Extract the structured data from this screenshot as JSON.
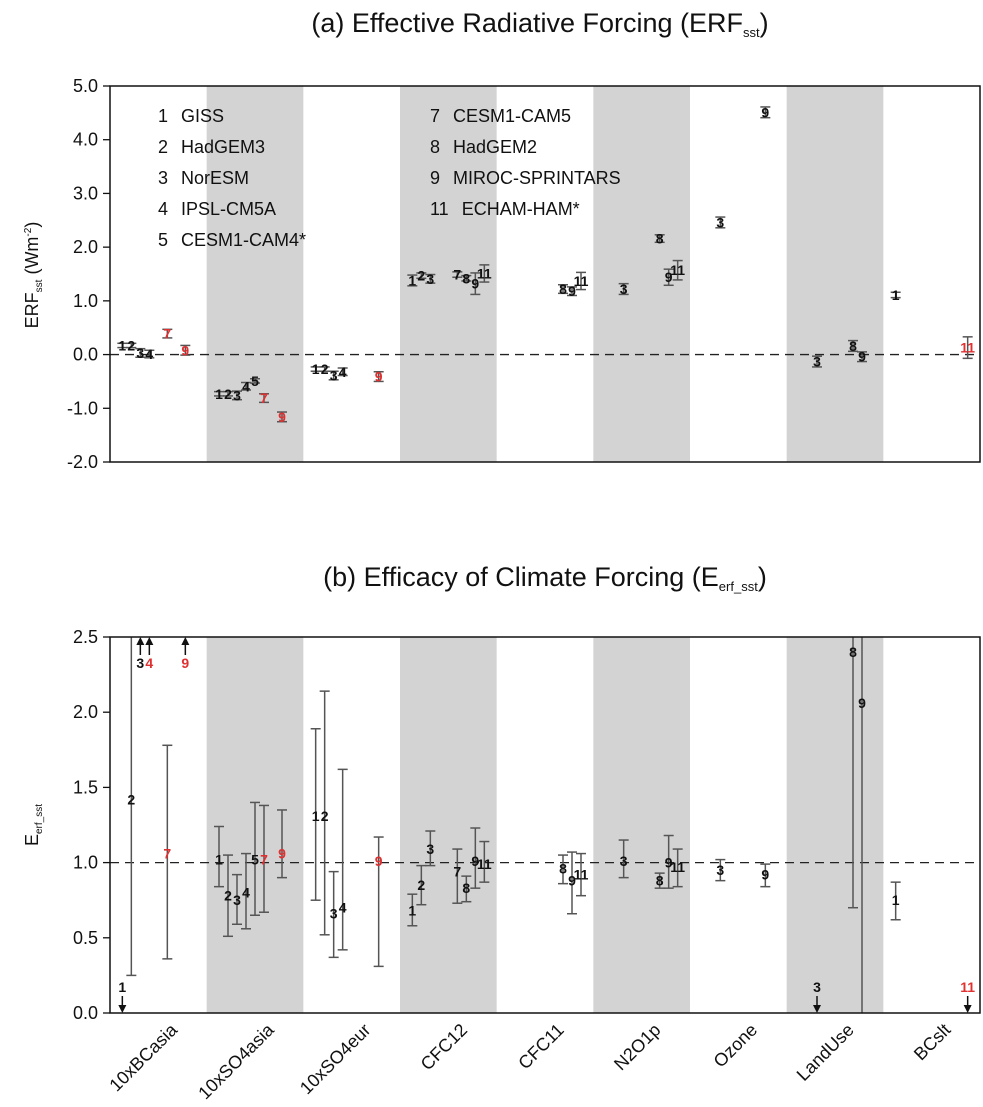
{
  "categories": [
    "10xBCasia",
    "10xSO4asia",
    "10xSO4eur",
    "CFC12",
    "CFC11",
    "N2O1p",
    "Ozone",
    "LandUse",
    "BCslt"
  ],
  "colors": {
    "highlight": "#e03030",
    "normal": "#111111",
    "band": "#d3d3d3",
    "errorbar": "#555555"
  },
  "chart_data": [
    {
      "type": "scatter",
      "title_main": "(a) Effective Radiative Forcing (ERF",
      "title_sub": "sst",
      "title_end": ")",
      "ylabel_main": "ERF",
      "ylabel_sub": "sst",
      "ylabel_unit": " (Wm",
      "ylabel_sup": "-2",
      "ylabel_end": ")",
      "ylim": [
        -2.0,
        5.0
      ],
      "yticks": [
        "-2.0",
        "-1.0",
        "0.0",
        "1.0",
        "2.0",
        "3.0",
        "4.0",
        "5.0"
      ],
      "reference_line": 0.0,
      "legend": [
        [
          "1",
          "GISS"
        ],
        [
          "2",
          "HadGEM3"
        ],
        [
          "3",
          "NorESM"
        ],
        [
          "4",
          "IPSL-CM5A"
        ],
        [
          "5",
          "CESM1-CAM4*"
        ],
        [
          "7",
          "CESM1-CAM5"
        ],
        [
          "8",
          "HadGEM2"
        ],
        [
          "9",
          "MIROC-SPRINTARS"
        ],
        [
          "11",
          "ECHAM-HAM*"
        ]
      ],
      "points": [
        {
          "cat": "10xBCasia",
          "m": "1",
          "y": 0.17,
          "err": 0.04
        },
        {
          "cat": "10xBCasia",
          "m": "2",
          "y": 0.17,
          "err": 0.04
        },
        {
          "cat": "10xBCasia",
          "m": "3",
          "y": 0.03,
          "err": 0.08
        },
        {
          "cat": "10xBCasia",
          "m": "4",
          "y": 0.01,
          "err": 0.07
        },
        {
          "cat": "10xBCasia",
          "m": "7",
          "y": 0.39,
          "err": 0.08,
          "hl": true
        },
        {
          "cat": "10xBCasia",
          "m": "9",
          "y": 0.08,
          "err": 0.09,
          "hl": true
        },
        {
          "cat": "10xSO4asia",
          "m": "1",
          "y": -0.73,
          "err": 0.04
        },
        {
          "cat": "10xSO4asia",
          "m": "2",
          "y": -0.73,
          "err": 0.04
        },
        {
          "cat": "10xSO4asia",
          "m": "3",
          "y": -0.76,
          "err": 0.08
        },
        {
          "cat": "10xSO4asia",
          "m": "4",
          "y": -0.59,
          "err": 0.07
        },
        {
          "cat": "10xSO4asia",
          "m": "5",
          "y": -0.49,
          "err": 0.04
        },
        {
          "cat": "10xSO4asia",
          "m": "7",
          "y": -0.81,
          "err": 0.08,
          "hl": true
        },
        {
          "cat": "10xSO4asia",
          "m": "9",
          "y": -1.16,
          "err": 0.09,
          "hl": true
        },
        {
          "cat": "10xSO4eur",
          "m": "1",
          "y": -0.27,
          "err": 0.04
        },
        {
          "cat": "10xSO4eur",
          "m": "2",
          "y": -0.27,
          "err": 0.04
        },
        {
          "cat": "10xSO4eur",
          "m": "3",
          "y": -0.39,
          "err": 0.08
        },
        {
          "cat": "10xSO4eur",
          "m": "4",
          "y": -0.32,
          "err": 0.07
        },
        {
          "cat": "10xSO4eur",
          "m": "9",
          "y": -0.41,
          "err": 0.09,
          "hl": true
        },
        {
          "cat": "CFC12",
          "m": "1",
          "y": 1.38,
          "err": 0.1
        },
        {
          "cat": "CFC12",
          "m": "2",
          "y": 1.47,
          "err": 0.05
        },
        {
          "cat": "CFC12",
          "m": "3",
          "y": 1.41,
          "err": 0.08
        },
        {
          "cat": "CFC12",
          "m": "7",
          "y": 1.49,
          "err": 0.05
        },
        {
          "cat": "CFC12",
          "m": "8",
          "y": 1.42,
          "err": 0.05
        },
        {
          "cat": "CFC12",
          "m": "9",
          "y": 1.32,
          "err": 0.2
        },
        {
          "cat": "CFC12",
          "m": "11",
          "y": 1.51,
          "err": 0.16
        },
        {
          "cat": "CFC11",
          "m": "8",
          "y": 1.22,
          "err": 0.08
        },
        {
          "cat": "CFC11",
          "m": "9",
          "y": 1.18,
          "err": 0.08
        },
        {
          "cat": "CFC11",
          "m": "11",
          "y": 1.37,
          "err": 0.16
        },
        {
          "cat": "N2O1p",
          "m": "3",
          "y": 1.22,
          "err": 0.1
        },
        {
          "cat": "N2O1p",
          "m": "8",
          "y": 2.16,
          "err": 0.07
        },
        {
          "cat": "N2O1p",
          "m": "9",
          "y": 1.44,
          "err": 0.15
        },
        {
          "cat": "N2O1p",
          "m": "11",
          "y": 1.57,
          "err": 0.18
        },
        {
          "cat": "Ozone",
          "m": "3",
          "y": 2.46,
          "err": 0.1
        },
        {
          "cat": "Ozone",
          "m": "9",
          "y": 4.51,
          "err": 0.1
        },
        {
          "cat": "LandUse",
          "m": "3",
          "y": -0.13,
          "err": 0.1
        },
        {
          "cat": "LandUse",
          "m": "8",
          "y": 0.16,
          "err": 0.1
        },
        {
          "cat": "LandUse",
          "m": "9",
          "y": -0.04,
          "err": 0.09
        },
        {
          "cat": "BCslt",
          "m": "1",
          "y": 1.11,
          "err": 0.05
        },
        {
          "cat": "BCslt",
          "m": "11",
          "y": 0.13,
          "err": 0.2,
          "hl": true
        }
      ]
    },
    {
      "type": "scatter",
      "title_main": "(b) Efficacy of Climate Forcing (E",
      "title_sub": "erf_sst",
      "title_end": ")",
      "ylabel_main": "E",
      "ylabel_sub": "erf_sst",
      "ylim": [
        0.0,
        2.5
      ],
      "yticks": [
        "0.0",
        "0.5",
        "1.0",
        "1.5",
        "2.0",
        "2.5"
      ],
      "reference_line": 1.0,
      "points": [
        {
          "cat": "10xBCasia",
          "m": "1",
          "off": "below"
        },
        {
          "cat": "10xBCasia",
          "m": "2",
          "y": 1.42,
          "lo": 0.25,
          "hi": 2.5
        },
        {
          "cat": "10xBCasia",
          "m": "3",
          "off": "above"
        },
        {
          "cat": "10xBCasia",
          "m": "4",
          "off": "above",
          "hl": true
        },
        {
          "cat": "10xBCasia",
          "m": "7",
          "y": 1.06,
          "lo": 0.36,
          "hi": 1.78,
          "hl": true
        },
        {
          "cat": "10xBCasia",
          "m": "9",
          "off": "above",
          "hl": true
        },
        {
          "cat": "10xSO4asia",
          "m": "1",
          "y": 1.02,
          "lo": 0.84,
          "hi": 1.24
        },
        {
          "cat": "10xSO4asia",
          "m": "2",
          "y": 0.78,
          "lo": 0.51,
          "hi": 1.05
        },
        {
          "cat": "10xSO4asia",
          "m": "3",
          "y": 0.75,
          "lo": 0.59,
          "hi": 0.92
        },
        {
          "cat": "10xSO4asia",
          "m": "4",
          "y": 0.8,
          "lo": 0.56,
          "hi": 1.06
        },
        {
          "cat": "10xSO4asia",
          "m": "5",
          "y": 1.02,
          "lo": 0.65,
          "hi": 1.4
        },
        {
          "cat": "10xSO4asia",
          "m": "7",
          "y": 1.02,
          "lo": 0.67,
          "hi": 1.38,
          "hl": true
        },
        {
          "cat": "10xSO4asia",
          "m": "9",
          "y": 1.06,
          "lo": 0.9,
          "hi": 1.35,
          "hl": true
        },
        {
          "cat": "10xSO4eur",
          "m": "1",
          "y": 1.31,
          "lo": 0.75,
          "hi": 1.89
        },
        {
          "cat": "10xSO4eur",
          "m": "2",
          "y": 1.31,
          "lo": 0.52,
          "hi": 2.14
        },
        {
          "cat": "10xSO4eur",
          "m": "3",
          "y": 0.66,
          "lo": 0.37,
          "hi": 0.94
        },
        {
          "cat": "10xSO4eur",
          "m": "4",
          "y": 0.7,
          "lo": 0.42,
          "hi": 1.62
        },
        {
          "cat": "10xSO4eur",
          "m": "9",
          "y": 1.01,
          "lo": 0.31,
          "hi": 1.17,
          "hl": true
        },
        {
          "cat": "CFC12",
          "m": "1",
          "y": 0.68,
          "lo": 0.58,
          "hi": 0.79
        },
        {
          "cat": "CFC12",
          "m": "2",
          "y": 0.85,
          "lo": 0.72,
          "hi": 0.98
        },
        {
          "cat": "CFC12",
          "m": "3",
          "y": 1.09,
          "lo": 0.98,
          "hi": 1.21
        },
        {
          "cat": "CFC12",
          "m": "7",
          "y": 0.94,
          "lo": 0.73,
          "hi": 1.09
        },
        {
          "cat": "CFC12",
          "m": "8",
          "y": 0.83,
          "lo": 0.74,
          "hi": 0.91
        },
        {
          "cat": "CFC12",
          "m": "9",
          "y": 1.01,
          "lo": 0.83,
          "hi": 1.23
        },
        {
          "cat": "CFC12",
          "m": "11",
          "y": 0.99,
          "lo": 0.87,
          "hi": 1.14
        },
        {
          "cat": "CFC11",
          "m": "8",
          "y": 0.96,
          "lo": 0.86,
          "hi": 1.05
        },
        {
          "cat": "CFC11",
          "m": "9",
          "y": 0.88,
          "lo": 0.66,
          "hi": 1.07
        },
        {
          "cat": "CFC11",
          "m": "11",
          "y": 0.92,
          "lo": 0.78,
          "hi": 1.06
        },
        {
          "cat": "N2O1p",
          "m": "3",
          "y": 1.01,
          "lo": 0.9,
          "hi": 1.15
        },
        {
          "cat": "N2O1p",
          "m": "8",
          "y": 0.88,
          "lo": 0.83,
          "hi": 0.93
        },
        {
          "cat": "N2O1p",
          "m": "9",
          "y": 1.0,
          "lo": 0.83,
          "hi": 1.18
        },
        {
          "cat": "N2O1p",
          "m": "11",
          "y": 0.97,
          "lo": 0.84,
          "hi": 1.09
        },
        {
          "cat": "Ozone",
          "m": "3",
          "y": 0.95,
          "lo": 0.88,
          "hi": 1.02
        },
        {
          "cat": "Ozone",
          "m": "9",
          "y": 0.92,
          "lo": 0.84,
          "hi": 0.99
        },
        {
          "cat": "LandUse",
          "m": "3",
          "off": "below"
        },
        {
          "cat": "LandUse",
          "m": "8",
          "y": 2.4,
          "lo": 0.7,
          "hi": 2.5
        },
        {
          "cat": "LandUse",
          "m": "9",
          "y": 2.06,
          "lo": 0.0,
          "hi": 2.5
        },
        {
          "cat": "BCslt",
          "m": "1",
          "y": 0.75,
          "lo": 0.62,
          "hi": 0.87
        },
        {
          "cat": "BCslt",
          "m": "11",
          "off": "below",
          "hl": true
        }
      ]
    }
  ]
}
